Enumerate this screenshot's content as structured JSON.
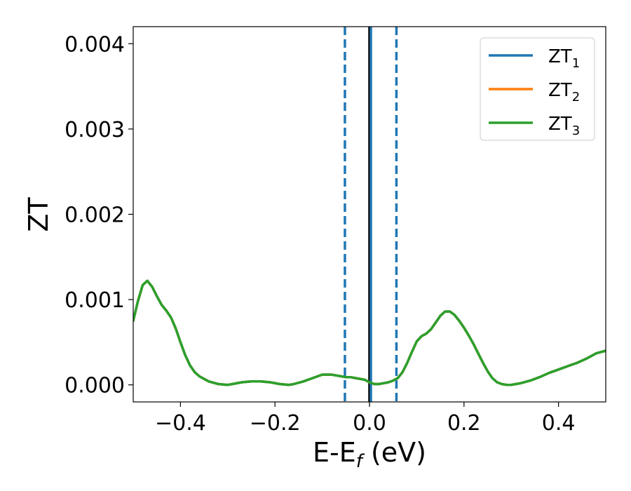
{
  "chart_data": {
    "type": "line",
    "xlabel": "E-E",
    "xlabel_sub": "f",
    "xlabel_units": " (eV)",
    "ylabel": "ZT",
    "xlim": [
      -0.5,
      0.5
    ],
    "ylim": [
      -0.0002,
      0.0042
    ],
    "x_ticks": [
      -0.4,
      -0.2,
      0.0,
      0.2,
      0.4
    ],
    "x_tick_labels": [
      "−0.4",
      "−0.2",
      "0.0",
      "0.2",
      "0.4"
    ],
    "y_ticks": [
      0.0,
      0.001,
      0.002,
      0.003,
      0.004
    ],
    "y_tick_labels": [
      "0.000",
      "0.001",
      "0.002",
      "0.003",
      "0.004"
    ],
    "grid": false,
    "legend_position": "top-right",
    "vlines": [
      {
        "x": -0.052,
        "style": "dashed",
        "color": "#1f77b4"
      },
      {
        "x": 0.0,
        "style": "solid",
        "color": "#000000"
      },
      {
        "x": 0.003,
        "style": "solid",
        "color": "#1f77b4"
      },
      {
        "x": 0.057,
        "style": "dashed",
        "color": "#1f77b4"
      }
    ],
    "series": [
      {
        "name": "ZT",
        "sub": "1",
        "color": "#1f77b4"
      },
      {
        "name": "ZT",
        "sub": "2",
        "color": "#ff7f0e"
      },
      {
        "name": "ZT",
        "sub": "3",
        "color": "#2ca02c"
      }
    ],
    "curve": {
      "x": [
        -0.5,
        -0.49,
        -0.48,
        -0.47,
        -0.46,
        -0.45,
        -0.44,
        -0.43,
        -0.42,
        -0.41,
        -0.4,
        -0.39,
        -0.38,
        -0.37,
        -0.36,
        -0.35,
        -0.34,
        -0.32,
        -0.3,
        -0.29,
        -0.27,
        -0.25,
        -0.23,
        -0.21,
        -0.19,
        -0.17,
        -0.16,
        -0.14,
        -0.12,
        -0.1,
        -0.08,
        -0.07,
        -0.06,
        -0.05,
        -0.04,
        -0.03,
        -0.02,
        -0.01,
        0.0,
        0.01,
        0.02,
        0.03,
        0.04,
        0.05,
        0.06,
        0.07,
        0.08,
        0.09,
        0.1,
        0.11,
        0.12,
        0.13,
        0.14,
        0.15,
        0.16,
        0.17,
        0.18,
        0.19,
        0.2,
        0.21,
        0.22,
        0.23,
        0.24,
        0.25,
        0.26,
        0.27,
        0.28,
        0.29,
        0.3,
        0.31,
        0.32,
        0.34,
        0.36,
        0.38,
        0.4,
        0.42,
        0.44,
        0.46,
        0.48,
        0.5
      ],
      "y": [
        0.00075,
        0.00098,
        0.00117,
        0.00122,
        0.00115,
        0.00104,
        0.00094,
        0.00087,
        0.00079,
        0.00066,
        0.0005,
        0.00035,
        0.00023,
        0.00015,
        0.0001,
        7e-05,
        4e-05,
        1e-05,
        0.0,
        1e-05,
        3e-05,
        4e-05,
        4e-05,
        3e-05,
        1e-05,
        0.0,
        1e-05,
        4e-05,
        8e-05,
        0.00012,
        0.00012,
        0.00011,
        0.0001,
        9e-05,
        9e-05,
        8e-05,
        7e-05,
        6e-05,
        3e-05,
        1e-05,
        1e-05,
        2e-05,
        3e-05,
        5e-05,
        8e-05,
        0.00015,
        0.00026,
        0.00039,
        0.00051,
        0.00057,
        0.0006,
        0.00065,
        0.00073,
        0.00081,
        0.00086,
        0.00086,
        0.00082,
        0.00075,
        0.00067,
        0.00058,
        0.00048,
        0.00037,
        0.00026,
        0.00016,
        8e-05,
        3e-05,
        1e-05,
        0.0,
        0.0,
        1e-05,
        2e-05,
        5e-05,
        9e-05,
        0.00014,
        0.00018,
        0.00022,
        0.00026,
        0.00031,
        0.00037,
        0.0004
      ]
    }
  }
}
